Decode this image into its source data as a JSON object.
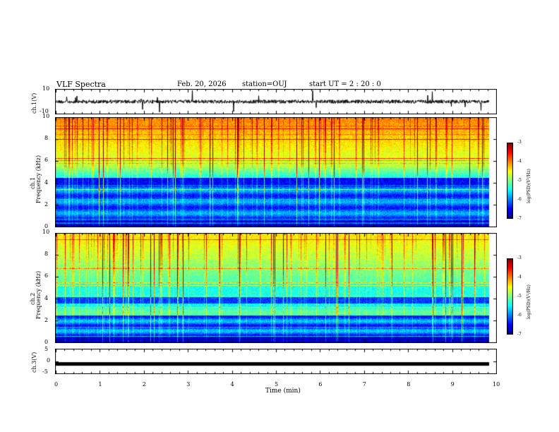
{
  "header": {
    "title": "VLF Spectra",
    "date": "Feb. 20, 2026",
    "station": "station=OUJ",
    "start": "start  UT =  2 : 20 : 0"
  },
  "chart_data": [
    {
      "type": "line",
      "name": "ch1-waveform",
      "ylabel": "ch.1(V)",
      "ylim": [
        -10,
        10
      ],
      "yticks": [
        "10",
        "-10"
      ],
      "xlim": [
        0,
        10
      ]
    },
    {
      "type": "heatmap",
      "name": "ch1-spectrogram",
      "ylabel_top": "ch.1",
      "ylabel": "Frequency (kHz)",
      "ylim": [
        0,
        10
      ],
      "yticks": [
        "0",
        "2",
        "4",
        "6",
        "8",
        "10"
      ],
      "xlim": [
        0,
        10
      ],
      "colorbar": {
        "label": "log(PSD)(V²/Hz)",
        "range": [
          -7,
          -3
        ],
        "ticks": [
          "-3",
          "-4",
          "-5",
          "-6",
          "-7"
        ]
      }
    },
    {
      "type": "heatmap",
      "name": "ch2-spectrogram",
      "ylabel_top": "ch.2",
      "ylabel": "Frequency (kHz)",
      "ylim": [
        0,
        10
      ],
      "yticks": [
        "0",
        "2",
        "4",
        "6",
        "8",
        "10"
      ],
      "xlim": [
        0,
        10
      ],
      "colorbar": {
        "label": "log(PSD)(V²/Hz)",
        "range": [
          -7,
          -3
        ],
        "ticks": [
          "-3",
          "-4",
          "-5",
          "-6",
          "-7"
        ]
      }
    },
    {
      "type": "line",
      "name": "ch3-waveform",
      "ylabel": "ch.3(V)",
      "ylim": [
        -5,
        5
      ],
      "yticks": [
        "5",
        "0",
        "-5"
      ],
      "xlim": [
        0,
        10
      ],
      "value": -1
    }
  ],
  "xaxis": {
    "label": "Time  (min)",
    "ticks": [
      "0",
      "1",
      "2",
      "3",
      "4",
      "5",
      "6",
      "7",
      "8",
      "9",
      "10"
    ]
  }
}
